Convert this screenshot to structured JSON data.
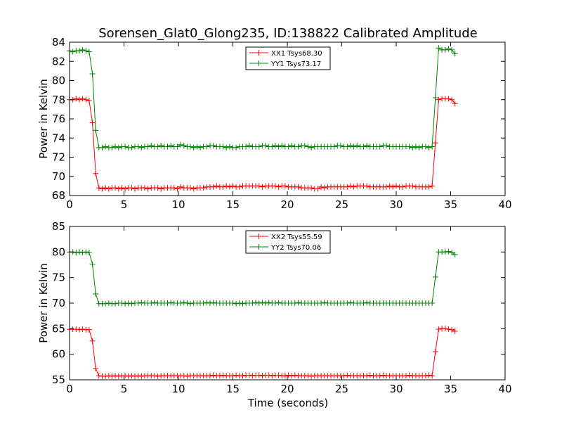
{
  "chart_data": [
    {
      "type": "line",
      "title": "Sorensen_Glat0_Glong235, ID:138822 Calibrated Amplitude",
      "xlabel": "",
      "ylabel": "Power in Kelvin",
      "xlim": [
        0,
        40
      ],
      "ylim": [
        68,
        84
      ],
      "xticks": [
        0,
        5,
        10,
        15,
        20,
        25,
        30,
        35,
        40
      ],
      "yticks": [
        68,
        70,
        72,
        74,
        76,
        78,
        80,
        82,
        84
      ],
      "grid": false,
      "legend_position": "top-center",
      "series": [
        {
          "name": "XX1 Tsys68.30",
          "color": "#ff0000",
          "x": [
            0.0,
            0.3,
            0.6,
            0.9,
            1.2,
            1.5,
            1.8,
            2.1,
            2.4,
            2.7,
            3.0,
            3.3,
            3.6,
            3.9,
            4.2,
            4.5,
            4.8,
            5.1,
            5.4,
            5.7,
            6.0,
            6.3,
            6.6,
            6.9,
            7.2,
            7.5,
            7.8,
            8.1,
            8.4,
            8.7,
            9.0,
            9.3,
            9.6,
            9.9,
            10.2,
            10.5,
            10.8,
            11.1,
            11.4,
            11.7,
            12.0,
            12.3,
            12.6,
            12.9,
            13.2,
            13.5,
            13.8,
            14.1,
            14.4,
            14.7,
            15.0,
            15.3,
            15.6,
            15.9,
            16.2,
            16.5,
            16.8,
            17.1,
            17.4,
            17.7,
            18.0,
            18.3,
            18.6,
            18.9,
            19.2,
            19.5,
            19.8,
            20.1,
            20.4,
            20.7,
            21.0,
            21.3,
            21.6,
            21.9,
            22.2,
            22.5,
            22.8,
            23.1,
            23.4,
            23.7,
            24.0,
            24.3,
            24.6,
            24.9,
            25.2,
            25.5,
            25.8,
            26.1,
            26.4,
            26.7,
            27.0,
            27.3,
            27.6,
            27.9,
            28.2,
            28.5,
            28.8,
            29.1,
            29.4,
            29.7,
            30.0,
            30.3,
            30.6,
            30.9,
            31.2,
            31.5,
            31.8,
            32.1,
            32.4,
            32.7,
            33.0,
            33.3,
            33.6,
            33.9,
            34.2,
            34.5,
            34.8,
            35.1,
            35.4
          ],
          "values": [
            78.0,
            78.0,
            78.1,
            78.0,
            78.1,
            78.0,
            77.9,
            75.6,
            70.3,
            68.8,
            68.7,
            68.8,
            68.7,
            68.8,
            68.8,
            68.7,
            68.8,
            68.7,
            68.8,
            68.8,
            68.7,
            68.8,
            68.8,
            68.8,
            68.7,
            68.8,
            68.8,
            68.8,
            68.7,
            68.8,
            68.8,
            68.8,
            68.8,
            68.7,
            68.9,
            68.8,
            68.8,
            68.8,
            68.7,
            68.8,
            68.8,
            68.8,
            68.9,
            68.9,
            68.9,
            69.0,
            68.9,
            68.9,
            69.0,
            68.9,
            69.0,
            68.9,
            68.9,
            69.0,
            69.0,
            69.0,
            69.0,
            69.0,
            69.0,
            68.9,
            69.0,
            69.0,
            69.0,
            69.0,
            68.9,
            69.0,
            69.0,
            68.9,
            68.9,
            68.9,
            68.9,
            68.8,
            68.8,
            68.8,
            68.8,
            68.7,
            68.7,
            68.9,
            68.8,
            68.9,
            68.9,
            68.9,
            68.9,
            68.9,
            68.9,
            68.9,
            69.0,
            68.9,
            69.0,
            69.0,
            69.0,
            69.0,
            68.9,
            68.9,
            68.9,
            68.9,
            68.9,
            68.9,
            69.0,
            68.9,
            69.0,
            68.9,
            68.9,
            69.0,
            69.0,
            69.0,
            68.9,
            68.9,
            68.9,
            68.9,
            68.9,
            69.0,
            73.5,
            78.0,
            78.1,
            78.1,
            78.1,
            78.0,
            77.6
          ]
        },
        {
          "name": "YY1 Tsys73.17",
          "color": "#008000",
          "x": [
            0.0,
            0.3,
            0.6,
            0.9,
            1.2,
            1.5,
            1.8,
            2.1,
            2.4,
            2.7,
            3.0,
            3.3,
            3.6,
            3.9,
            4.2,
            4.5,
            4.8,
            5.1,
            5.4,
            5.7,
            6.0,
            6.3,
            6.6,
            6.9,
            7.2,
            7.5,
            7.8,
            8.1,
            8.4,
            8.7,
            9.0,
            9.3,
            9.6,
            9.9,
            10.2,
            10.5,
            10.8,
            11.1,
            11.4,
            11.7,
            12.0,
            12.3,
            12.6,
            12.9,
            13.2,
            13.5,
            13.8,
            14.1,
            14.4,
            14.7,
            15.0,
            15.3,
            15.6,
            15.9,
            16.2,
            16.5,
            16.8,
            17.1,
            17.4,
            17.7,
            18.0,
            18.3,
            18.6,
            18.9,
            19.2,
            19.5,
            19.8,
            20.1,
            20.4,
            20.7,
            21.0,
            21.3,
            21.6,
            21.9,
            22.2,
            22.5,
            22.8,
            23.1,
            23.4,
            23.7,
            24.0,
            24.3,
            24.6,
            24.9,
            25.2,
            25.5,
            25.8,
            26.1,
            26.4,
            26.7,
            27.0,
            27.3,
            27.6,
            27.9,
            28.2,
            28.5,
            28.8,
            29.1,
            29.4,
            29.7,
            30.0,
            30.3,
            30.6,
            30.9,
            31.2,
            31.5,
            31.8,
            32.1,
            32.4,
            32.7,
            33.0,
            33.3,
            33.6,
            33.9,
            34.2,
            34.5,
            34.8,
            35.1,
            35.4
          ],
          "values": [
            83.1,
            83.0,
            83.1,
            83.1,
            83.2,
            83.1,
            83.0,
            80.7,
            74.8,
            73.0,
            73.0,
            73.1,
            73.0,
            73.0,
            73.1,
            73.0,
            73.1,
            73.1,
            73.0,
            73.0,
            73.1,
            73.1,
            73.0,
            73.1,
            73.1,
            73.2,
            73.1,
            73.1,
            73.2,
            73.1,
            73.1,
            73.2,
            73.1,
            73.1,
            73.3,
            73.2,
            73.1,
            73.1,
            73.0,
            73.1,
            73.0,
            73.1,
            73.1,
            73.2,
            73.2,
            73.1,
            73.1,
            73.1,
            73.0,
            73.1,
            73.0,
            73.0,
            73.1,
            73.1,
            73.1,
            73.2,
            73.1,
            73.1,
            73.1,
            73.2,
            73.2,
            73.1,
            73.1,
            73.2,
            73.1,
            73.2,
            73.1,
            73.1,
            73.2,
            73.1,
            73.1,
            73.2,
            73.2,
            73.1,
            73.0,
            73.1,
            73.1,
            73.1,
            73.1,
            73.1,
            73.1,
            73.1,
            73.2,
            73.2,
            73.1,
            73.1,
            73.2,
            73.1,
            73.2,
            73.1,
            73.1,
            73.2,
            73.1,
            73.1,
            73.1,
            73.1,
            73.2,
            73.2,
            73.1,
            73.1,
            73.1,
            73.1,
            73.1,
            73.1,
            73.1,
            73.0,
            73.1,
            73.0,
            73.1,
            73.1,
            73.0,
            73.1,
            78.2,
            83.4,
            83.2,
            83.2,
            83.3,
            83.2,
            82.8
          ]
        }
      ]
    },
    {
      "type": "line",
      "title": "",
      "xlabel": "Time (seconds)",
      "ylabel": "Power in Kelvin",
      "xlim": [
        0,
        40
      ],
      "ylim": [
        55,
        85
      ],
      "xticks": [
        0,
        5,
        10,
        15,
        20,
        25,
        30,
        35,
        40
      ],
      "yticks": [
        55,
        60,
        65,
        70,
        75,
        80,
        85
      ],
      "grid": false,
      "legend_position": "top-center",
      "series": [
        {
          "name": "XX2 Tsys55.59",
          "color": "#ff0000",
          "x": [
            0.0,
            0.3,
            0.6,
            0.9,
            1.2,
            1.5,
            1.8,
            2.1,
            2.4,
            2.7,
            3.0,
            3.3,
            3.6,
            3.9,
            4.2,
            4.5,
            4.8,
            5.1,
            5.4,
            5.7,
            6.0,
            6.3,
            6.6,
            6.9,
            7.2,
            7.5,
            7.8,
            8.1,
            8.4,
            8.7,
            9.0,
            9.3,
            9.6,
            9.9,
            10.2,
            10.5,
            10.8,
            11.1,
            11.4,
            11.7,
            12.0,
            12.3,
            12.6,
            12.9,
            13.2,
            13.5,
            13.8,
            14.1,
            14.4,
            14.7,
            15.0,
            15.3,
            15.6,
            15.9,
            16.2,
            16.5,
            16.8,
            17.1,
            17.4,
            17.7,
            18.0,
            18.3,
            18.6,
            18.9,
            19.2,
            19.5,
            19.8,
            20.1,
            20.4,
            20.7,
            21.0,
            21.3,
            21.6,
            21.9,
            22.2,
            22.5,
            22.8,
            23.1,
            23.4,
            23.7,
            24.0,
            24.3,
            24.6,
            24.9,
            25.2,
            25.5,
            25.8,
            26.1,
            26.4,
            26.7,
            27.0,
            27.3,
            27.6,
            27.9,
            28.2,
            28.5,
            28.8,
            29.1,
            29.4,
            29.7,
            30.0,
            30.3,
            30.6,
            30.9,
            31.2,
            31.5,
            31.8,
            32.1,
            32.4,
            32.7,
            33.0,
            33.3,
            33.6,
            33.9,
            34.2,
            34.5,
            34.8,
            35.1,
            35.4
          ],
          "values": [
            64.9,
            64.9,
            64.9,
            64.8,
            64.9,
            64.8,
            64.8,
            62.6,
            57.2,
            55.8,
            55.7,
            55.7,
            55.8,
            55.7,
            55.8,
            55.7,
            55.8,
            55.8,
            55.7,
            55.8,
            55.7,
            55.8,
            55.7,
            55.8,
            55.8,
            55.8,
            55.8,
            55.7,
            55.8,
            55.8,
            55.8,
            55.8,
            55.8,
            55.8,
            55.8,
            55.8,
            55.7,
            55.8,
            55.8,
            55.8,
            55.8,
            55.8,
            55.8,
            55.8,
            55.9,
            55.8,
            55.8,
            55.9,
            55.8,
            55.8,
            55.8,
            55.9,
            55.8,
            55.8,
            55.9,
            55.9,
            55.8,
            55.9,
            55.9,
            55.8,
            55.9,
            55.9,
            55.8,
            55.9,
            55.9,
            55.8,
            55.8,
            55.9,
            55.8,
            55.9,
            55.8,
            55.8,
            55.8,
            55.8,
            55.7,
            55.8,
            55.8,
            55.8,
            55.8,
            55.8,
            55.8,
            55.8,
            55.8,
            55.8,
            55.8,
            55.9,
            55.8,
            55.8,
            55.8,
            55.8,
            55.8,
            55.8,
            55.9,
            55.8,
            55.8,
            55.8,
            55.9,
            55.8,
            55.8,
            55.8,
            55.8,
            55.8,
            55.8,
            55.8,
            55.9,
            55.8,
            55.8,
            55.8,
            55.8,
            55.8,
            55.9,
            55.8,
            60.5,
            64.9,
            65.0,
            65.0,
            64.9,
            64.8,
            64.5
          ]
        },
        {
          "name": "YY2 Tsys70.06",
          "color": "#008000",
          "x": [
            0.0,
            0.3,
            0.6,
            0.9,
            1.2,
            1.5,
            1.8,
            2.1,
            2.4,
            2.7,
            3.0,
            3.3,
            3.6,
            3.9,
            4.2,
            4.5,
            4.8,
            5.1,
            5.4,
            5.7,
            6.0,
            6.3,
            6.6,
            6.9,
            7.2,
            7.5,
            7.8,
            8.1,
            8.4,
            8.7,
            9.0,
            9.3,
            9.6,
            9.9,
            10.2,
            10.5,
            10.8,
            11.1,
            11.4,
            11.7,
            12.0,
            12.3,
            12.6,
            12.9,
            13.2,
            13.5,
            13.8,
            14.1,
            14.4,
            14.7,
            15.0,
            15.3,
            15.6,
            15.9,
            16.2,
            16.5,
            16.8,
            17.1,
            17.4,
            17.7,
            18.0,
            18.3,
            18.6,
            18.9,
            19.2,
            19.5,
            19.8,
            20.1,
            20.4,
            20.7,
            21.0,
            21.3,
            21.6,
            21.9,
            22.2,
            22.5,
            22.8,
            23.1,
            23.4,
            23.7,
            24.0,
            24.3,
            24.6,
            24.9,
            25.2,
            25.5,
            25.8,
            26.1,
            26.4,
            26.7,
            27.0,
            27.3,
            27.6,
            27.9,
            28.2,
            28.5,
            28.8,
            29.1,
            29.4,
            29.7,
            30.0,
            30.3,
            30.6,
            30.9,
            31.2,
            31.5,
            31.8,
            32.1,
            32.4,
            32.7,
            33.0,
            33.3,
            33.6,
            33.9,
            34.2,
            34.5,
            34.8,
            35.1,
            35.4
          ],
          "values": [
            80.0,
            80.0,
            79.9,
            80.0,
            79.9,
            80.0,
            79.9,
            77.6,
            71.8,
            69.9,
            69.9,
            69.9,
            70.0,
            69.9,
            69.9,
            70.0,
            70.0,
            69.9,
            70.0,
            69.9,
            70.0,
            70.0,
            70.1,
            70.0,
            70.0,
            70.0,
            70.1,
            70.0,
            70.0,
            70.0,
            70.0,
            70.1,
            70.0,
            70.0,
            70.0,
            70.1,
            70.0,
            69.9,
            70.0,
            70.0,
            70.0,
            70.0,
            70.1,
            70.0,
            70.1,
            70.0,
            70.0,
            70.0,
            70.0,
            70.0,
            70.0,
            69.9,
            70.0,
            69.9,
            70.0,
            70.0,
            70.0,
            70.1,
            70.0,
            70.1,
            70.0,
            70.1,
            70.0,
            70.0,
            70.1,
            70.0,
            70.0,
            70.0,
            70.0,
            70.0,
            70.1,
            70.0,
            70.0,
            70.0,
            70.0,
            70.0,
            70.0,
            70.0,
            70.1,
            70.0,
            70.0,
            70.0,
            70.0,
            70.0,
            70.0,
            70.0,
            70.1,
            70.0,
            70.0,
            70.0,
            70.0,
            70.1,
            70.0,
            70.0,
            70.0,
            70.0,
            70.0,
            70.0,
            70.0,
            70.0,
            70.0,
            70.0,
            70.0,
            70.0,
            70.0,
            70.0,
            70.0,
            70.0,
            70.0,
            70.0,
            70.0,
            70.0,
            75.1,
            80.0,
            80.0,
            80.0,
            80.1,
            79.9,
            79.5
          ]
        }
      ]
    }
  ]
}
